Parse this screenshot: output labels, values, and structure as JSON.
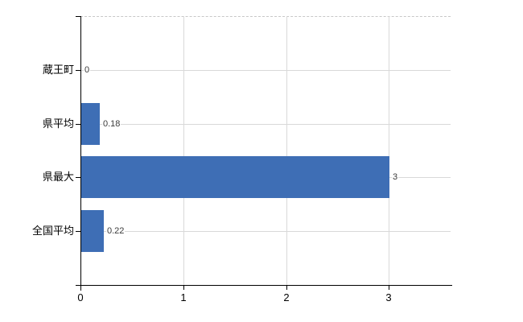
{
  "chart_data": {
    "type": "bar",
    "orientation": "horizontal",
    "categories": [
      "蔵王町",
      "県平均",
      "県最大",
      "全国平均"
    ],
    "values": [
      0,
      0.18,
      3,
      0.22
    ],
    "value_labels": [
      "0",
      "0.18",
      "3",
      "0.22"
    ],
    "x_ticks": [
      0,
      1,
      2,
      3
    ],
    "x_tick_labels": [
      "0",
      "1",
      "2",
      "3"
    ],
    "xlim": [
      0,
      3.6
    ],
    "grid": true,
    "legend_position": "none",
    "colors": {
      "bar": "#3e6eb5",
      "grid": "#d9d9d9",
      "axis": "#000000",
      "value_label": "#3a3a3a",
      "top_border_dashed": "#c8c8c8",
      "background": "#ffffff"
    }
  }
}
